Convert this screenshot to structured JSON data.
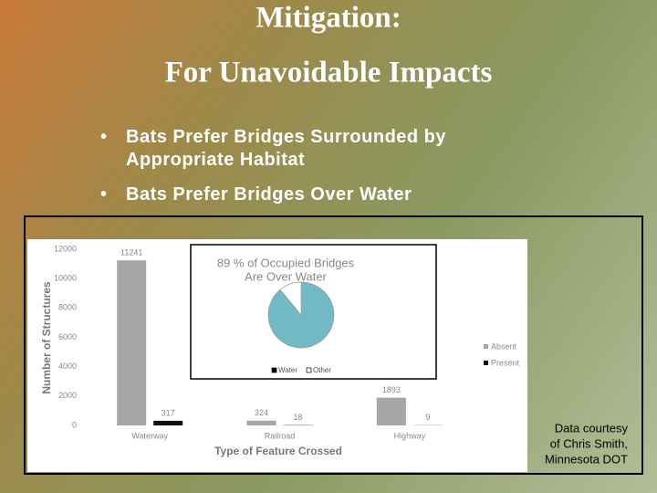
{
  "slide": {
    "title": [
      "Mitigation:",
      "For Unavoidable Impacts"
    ],
    "bullets": [
      "Bats Prefer Bridges Surrounded by Appropriate Habitat",
      "Bats Prefer Bridges Over Water"
    ],
    "note": [
      "Data courtesy",
      "of Chris Smith,",
      "Minnesota DOT"
    ]
  },
  "chart_data": [
    {
      "type": "bar",
      "x_label": "Type of Feature Crossed",
      "y_label": "Number of Structures",
      "categories": [
        "Waterway",
        "Railroad",
        "Highway"
      ],
      "series": [
        {
          "name": "Absent",
          "color": "#a6a6a6",
          "values": [
            11241,
            324,
            1893
          ]
        },
        {
          "name": "Present",
          "color": "#111111",
          "values": [
            317,
            18,
            9
          ]
        }
      ],
      "ylim": [
        0,
        12000
      ],
      "yticks": [
        0,
        2000,
        4000,
        6000,
        8000,
        10000,
        12000
      ],
      "grid": false
    },
    {
      "type": "pie",
      "title": [
        "89 % of Occupied Bridges",
        "Are Over Water"
      ],
      "categories": [
        "Water",
        "Other"
      ],
      "values": [
        89,
        11
      ],
      "colors": [
        "#72b9c6",
        "#ffffff"
      ]
    }
  ]
}
